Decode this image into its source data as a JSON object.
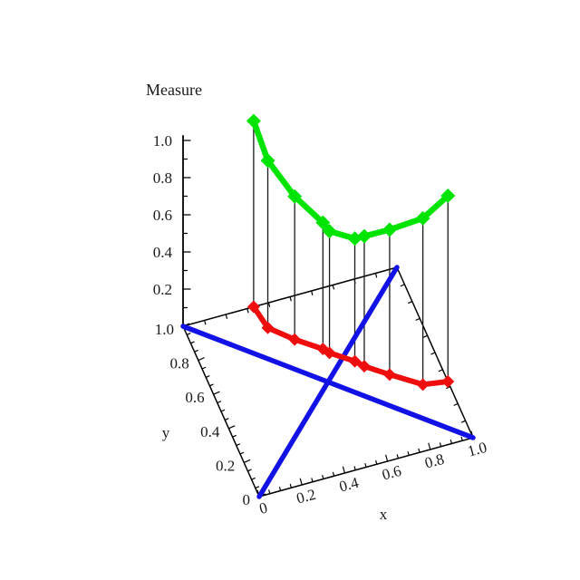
{
  "page": {
    "background": "#FFFFFF"
  },
  "chart_data": {
    "type": "line",
    "view": "3d",
    "title": "Measure",
    "xlabel": "x",
    "ylabel": "y",
    "zlabel": "Measure",
    "axis_ranges": {
      "x": [
        0,
        1
      ],
      "y": [
        0,
        1
      ],
      "measure": [
        0,
        1
      ]
    },
    "x_axis": {
      "label": "x",
      "tick_values": [
        0,
        0.2,
        0.4,
        0.6,
        0.8,
        1.0
      ],
      "tick_labels": [
        "0",
        "0.2",
        "0.4",
        "0.6",
        "0.8",
        "1.0"
      ],
      "minor_tick_step": 0.05
    },
    "y_axis": {
      "label": "y",
      "tick_values": [
        0,
        0.2,
        0.4,
        0.6,
        0.8,
        1.0
      ],
      "tick_labels": [
        "0",
        "0.2",
        "0.4",
        "0.6",
        "0.8",
        "1.0"
      ],
      "minor_tick_step": 0.05
    },
    "measure_axis": {
      "label": "Measure",
      "tick_values": [
        0.2,
        0.4,
        0.6,
        0.8,
        1.0
      ],
      "tick_labels": [
        "0.2",
        "0.4",
        "0.6",
        "0.8",
        "1.0"
      ],
      "minor_tick_step": 0.1
    },
    "back_edges": {
      "tick_step": 0.1
    },
    "colors": {
      "measure_curve": "#00E404",
      "projection_curve": "#EE0E0E",
      "diagonals": "#1212E6",
      "axes": "#000000",
      "drop_lines": "#1A1A1A"
    },
    "series": [
      {
        "name": "measure-curve",
        "color_key": "measure_curve",
        "marker": "diamond",
        "points": [
          [
            0.33,
            1.0,
            1.0
          ],
          [
            0.35,
            0.87,
            0.9
          ],
          [
            0.44,
            0.77,
            0.77
          ],
          [
            0.54,
            0.68,
            0.68
          ],
          [
            0.56,
            0.65,
            0.655
          ],
          [
            0.65,
            0.57,
            0.66
          ],
          [
            0.68,
            0.53,
            0.7
          ],
          [
            0.77,
            0.45,
            0.78
          ],
          [
            0.89,
            0.35,
            0.895
          ],
          [
            1.0,
            0.33,
            1.0
          ]
        ]
      },
      {
        "name": "base-projection-curve",
        "color_key": "projection_curve",
        "marker": "diamond",
        "points": [
          [
            0.33,
            1.0,
            0
          ],
          [
            0.35,
            0.87,
            0
          ],
          [
            0.44,
            0.77,
            0
          ],
          [
            0.54,
            0.68,
            0
          ],
          [
            0.56,
            0.65,
            0
          ],
          [
            0.65,
            0.57,
            0
          ],
          [
            0.68,
            0.53,
            0
          ],
          [
            0.77,
            0.45,
            0
          ],
          [
            0.89,
            0.35,
            0
          ],
          [
            1.0,
            0.33,
            0
          ]
        ]
      },
      {
        "name": "diagonal-00-to-11",
        "color_key": "diagonals",
        "marker": "none",
        "points": [
          [
            0,
            0,
            0
          ],
          [
            1,
            1,
            0
          ]
        ]
      },
      {
        "name": "diagonal-01-to-10",
        "color_key": "diagonals",
        "marker": "none",
        "points": [
          [
            0,
            1,
            0
          ],
          [
            1,
            0,
            0
          ]
        ]
      }
    ],
    "drop_lines": {
      "enabled": true,
      "from_series": "measure-curve",
      "to_series": "base-projection-curve"
    }
  }
}
